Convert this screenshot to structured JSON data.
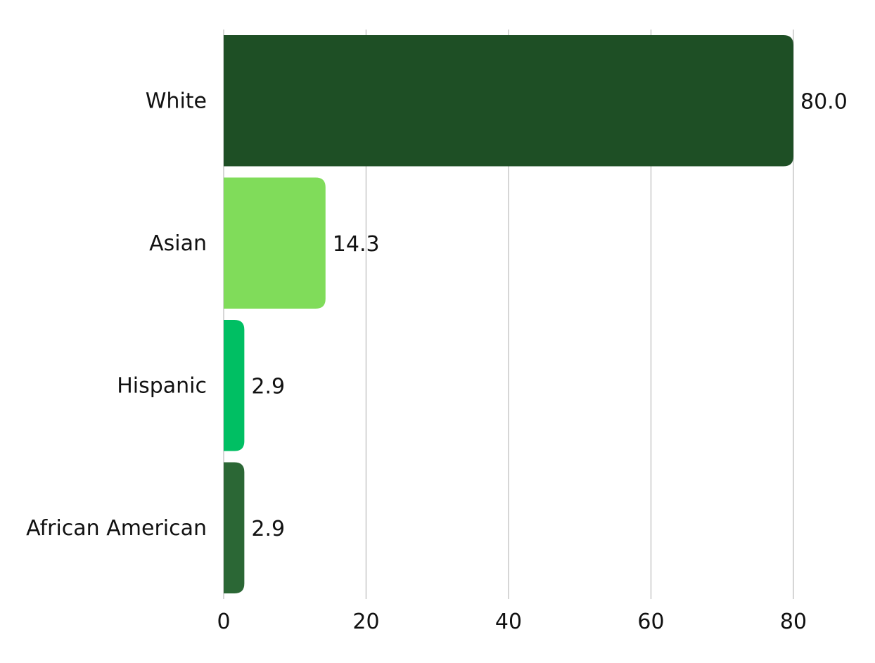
{
  "chart_data": {
    "type": "bar",
    "orientation": "horizontal",
    "title": "",
    "xlabel": "",
    "ylabel": "",
    "categories": [
      "White",
      "Asian",
      "Hispanic",
      "African American"
    ],
    "values": [
      80.0,
      14.3,
      2.9,
      2.9
    ],
    "value_labels": [
      "80.0",
      "14.3",
      "2.9",
      "2.9"
    ],
    "colors": [
      "#1e4f25",
      "#80dc5a",
      "#00bf63",
      "#2b6735"
    ],
    "xlim": [
      0,
      80
    ],
    "ticks": [
      0,
      20,
      40,
      60,
      80
    ],
    "tick_labels": [
      "0",
      "20",
      "40",
      "60",
      "80"
    ],
    "grid": "vertical",
    "gridline_color": "#c8c8c8",
    "legend": "none"
  }
}
